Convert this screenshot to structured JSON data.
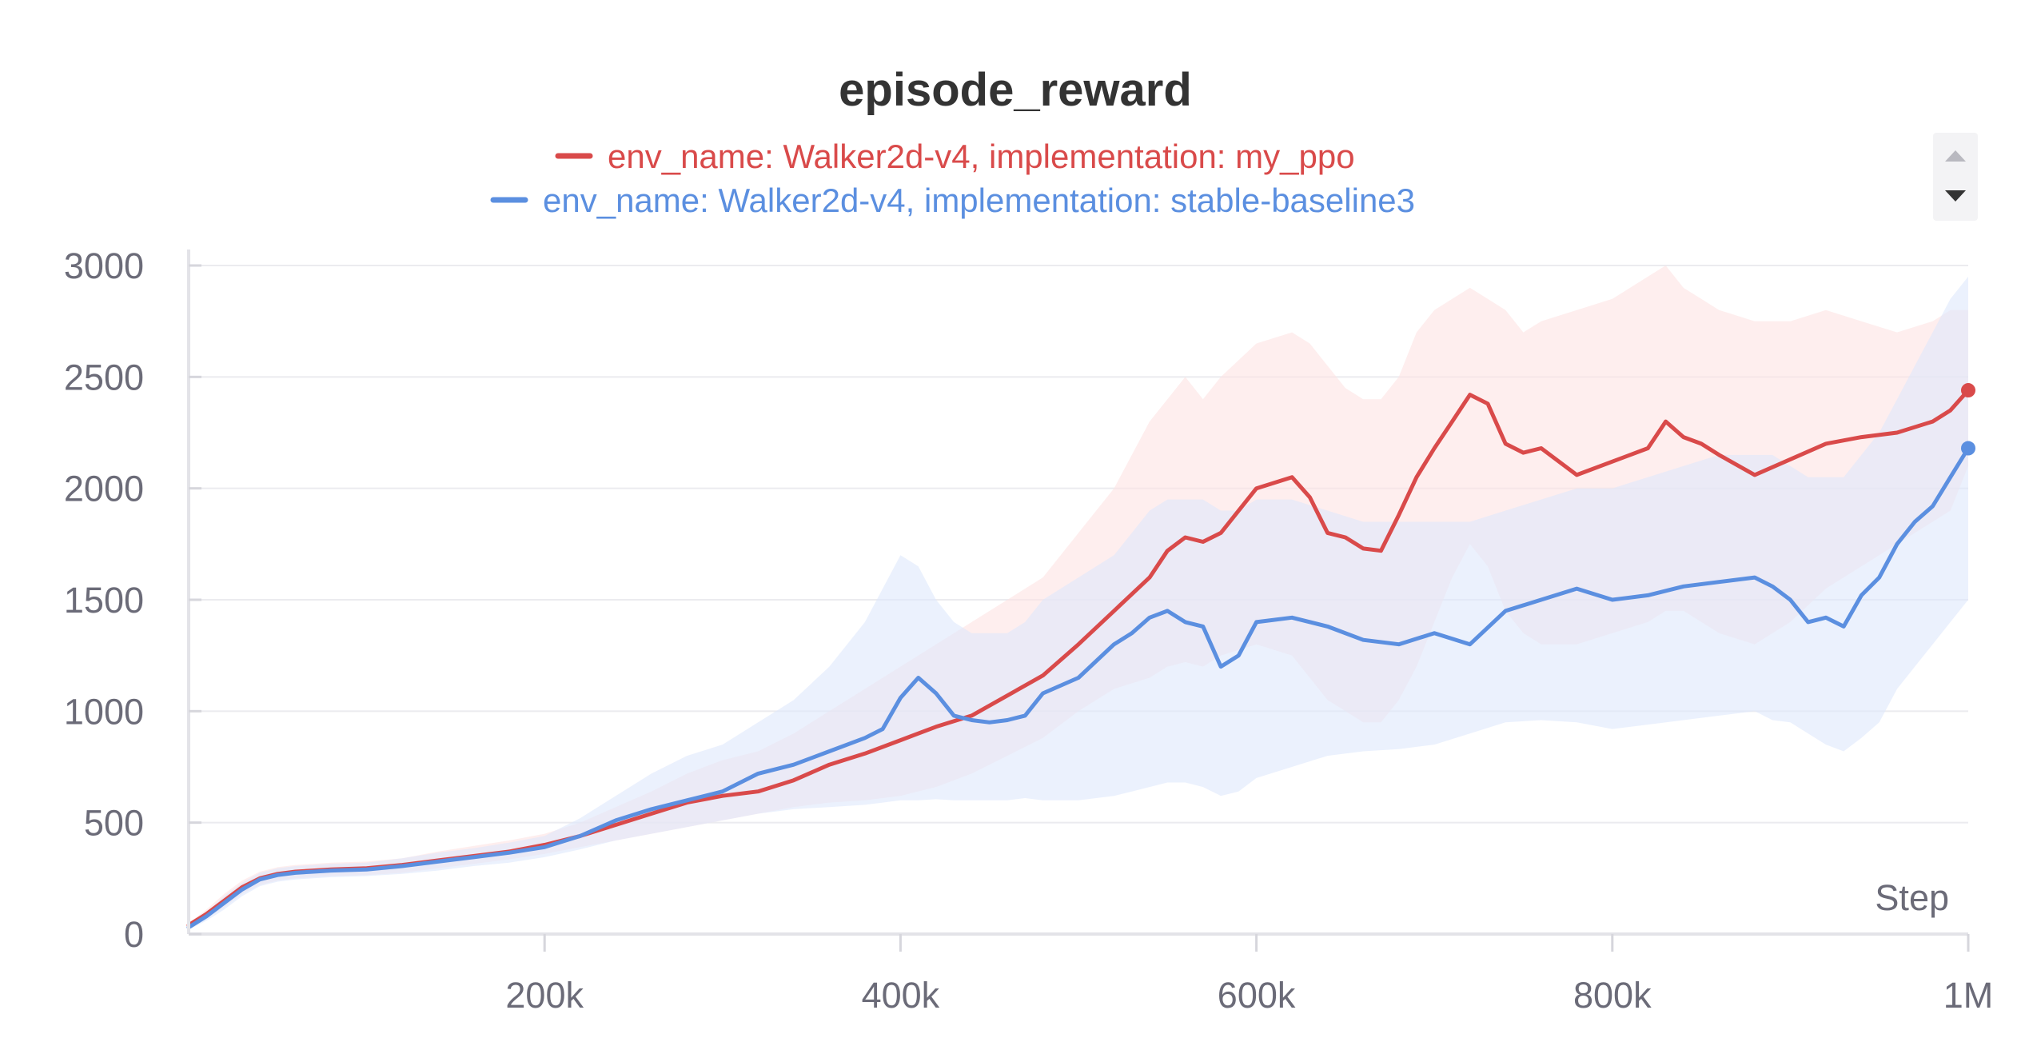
{
  "chart_data": {
    "type": "line",
    "title": "episode_reward",
    "xlabel": "Step",
    "ylabel": "",
    "xlim": [
      0,
      1000000
    ],
    "ylim": [
      0,
      3000
    ],
    "x_ticks": [
      200000,
      400000,
      600000,
      800000,
      1000000
    ],
    "x_tick_labels": [
      "200k",
      "400k",
      "600k",
      "800k",
      "1M"
    ],
    "y_ticks": [
      0,
      500,
      1000,
      1500,
      2000,
      2500,
      3000
    ],
    "y_tick_labels": [
      "0",
      "500",
      "1000",
      "1500",
      "2000",
      "2500",
      "3000"
    ],
    "grid": true,
    "legend_position": "top-center",
    "series": [
      {
        "name": "env_name: Walker2d-v4, implementation: my_ppo",
        "color": "#d94a4a",
        "band_color": "#fde3e3",
        "x": [
          0,
          10000,
          20000,
          30000,
          40000,
          50000,
          60000,
          70000,
          80000,
          100000,
          120000,
          140000,
          160000,
          180000,
          200000,
          220000,
          240000,
          260000,
          280000,
          300000,
          320000,
          340000,
          360000,
          380000,
          400000,
          420000,
          440000,
          460000,
          480000,
          500000,
          520000,
          540000,
          550000,
          560000,
          570000,
          580000,
          600000,
          620000,
          630000,
          640000,
          650000,
          660000,
          670000,
          680000,
          690000,
          700000,
          710000,
          720000,
          730000,
          740000,
          750000,
          760000,
          780000,
          800000,
          820000,
          830000,
          840000,
          850000,
          860000,
          880000,
          900000,
          920000,
          940000,
          960000,
          980000,
          990000,
          1000000
        ],
        "values": [
          40,
          90,
          150,
          210,
          250,
          270,
          280,
          285,
          290,
          295,
          310,
          330,
          350,
          370,
          400,
          440,
          490,
          540,
          590,
          620,
          640,
          690,
          760,
          810,
          870,
          930,
          980,
          1070,
          1160,
          1300,
          1450,
          1600,
          1720,
          1780,
          1760,
          1800,
          2000,
          2050,
          1960,
          1800,
          1780,
          1730,
          1720,
          1880,
          2050,
          2180,
          2300,
          2420,
          2380,
          2200,
          2160,
          2180,
          2060,
          2120,
          2180,
          2300,
          2230,
          2200,
          2150,
          2060,
          2130,
          2200,
          2230,
          2250,
          2300,
          2350,
          2440
        ],
        "band_low": [
          30,
          70,
          120,
          180,
          220,
          240,
          250,
          255,
          260,
          265,
          275,
          295,
          315,
          335,
          360,
          390,
          420,
          450,
          480,
          510,
          540,
          570,
          590,
          600,
          620,
          660,
          720,
          800,
          880,
          1000,
          1100,
          1150,
          1200,
          1220,
          1200,
          1250,
          1300,
          1250,
          1150,
          1050,
          1000,
          950,
          950,
          1050,
          1200,
          1400,
          1600,
          1750,
          1650,
          1450,
          1350,
          1300,
          1300,
          1350,
          1400,
          1450,
          1450,
          1400,
          1350,
          1300,
          1400,
          1550,
          1650,
          1750,
          1850,
          1900,
          2100
        ],
        "band_high": [
          50,
          110,
          180,
          240,
          280,
          300,
          310,
          315,
          320,
          325,
          340,
          370,
          395,
          420,
          450,
          500,
          570,
          640,
          720,
          780,
          820,
          900,
          1000,
          1100,
          1200,
          1300,
          1400,
          1500,
          1600,
          1800,
          2000,
          2300,
          2400,
          2500,
          2400,
          2500,
          2650,
          2700,
          2650,
          2550,
          2450,
          2400,
          2400,
          2500,
          2700,
          2800,
          2850,
          2900,
          2850,
          2800,
          2700,
          2750,
          2800,
          2850,
          2950,
          3000,
          2900,
          2850,
          2800,
          2750,
          2750,
          2800,
          2750,
          2700,
          2750,
          2800,
          2800
        ]
      },
      {
        "name": "env_name: Walker2d-v4, implementation: stable-baseline3",
        "color": "#5b8fe0",
        "band_color": "#dde8fb",
        "x": [
          0,
          10000,
          20000,
          30000,
          40000,
          50000,
          60000,
          70000,
          80000,
          100000,
          120000,
          140000,
          160000,
          180000,
          200000,
          220000,
          240000,
          260000,
          280000,
          300000,
          320000,
          340000,
          360000,
          380000,
          390000,
          400000,
          410000,
          420000,
          430000,
          440000,
          450000,
          460000,
          470000,
          480000,
          500000,
          520000,
          530000,
          540000,
          550000,
          560000,
          570000,
          580000,
          590000,
          600000,
          620000,
          640000,
          660000,
          680000,
          700000,
          720000,
          740000,
          760000,
          780000,
          800000,
          820000,
          840000,
          860000,
          880000,
          890000,
          900000,
          910000,
          920000,
          930000,
          940000,
          950000,
          960000,
          970000,
          980000,
          990000,
          1000000
        ],
        "values": [
          30,
          80,
          140,
          200,
          245,
          265,
          275,
          280,
          285,
          290,
          305,
          325,
          345,
          365,
          390,
          440,
          510,
          560,
          600,
          640,
          720,
          760,
          820,
          880,
          920,
          1060,
          1150,
          1080,
          980,
          960,
          950,
          960,
          980,
          1080,
          1150,
          1300,
          1350,
          1420,
          1450,
          1400,
          1380,
          1200,
          1250,
          1400,
          1420,
          1380,
          1320,
          1300,
          1350,
          1300,
          1450,
          1500,
          1550,
          1500,
          1520,
          1560,
          1580,
          1600,
          1560,
          1500,
          1400,
          1420,
          1380,
          1520,
          1600,
          1750,
          1850,
          1920,
          2050,
          2180
        ],
        "band_low": [
          20,
          60,
          110,
          170,
          215,
          235,
          245,
          250,
          255,
          260,
          270,
          285,
          305,
          320,
          345,
          380,
          420,
          450,
          480,
          510,
          540,
          560,
          570,
          580,
          590,
          600,
          600,
          605,
          600,
          600,
          600,
          600,
          610,
          600,
          600,
          620,
          640,
          660,
          680,
          680,
          660,
          620,
          640,
          700,
          750,
          800,
          820,
          830,
          850,
          900,
          950,
          960,
          950,
          920,
          940,
          960,
          980,
          1000,
          960,
          950,
          900,
          850,
          820,
          880,
          950,
          1100,
          1200,
          1300,
          1400,
          1500
        ],
        "band_high": [
          40,
          100,
          170,
          230,
          275,
          295,
          305,
          310,
          315,
          320,
          340,
          365,
          385,
          410,
          440,
          520,
          620,
          720,
          800,
          850,
          950,
          1050,
          1200,
          1400,
          1550,
          1700,
          1650,
          1500,
          1400,
          1350,
          1350,
          1350,
          1400,
          1500,
          1600,
          1700,
          1800,
          1900,
          1950,
          1950,
          1950,
          1900,
          1900,
          1950,
          1950,
          1900,
          1850,
          1850,
          1850,
          1850,
          1900,
          1950,
          2000,
          2000,
          2050,
          2100,
          2150,
          2150,
          2150,
          2100,
          2050,
          2050,
          2050,
          2150,
          2250,
          2400,
          2550,
          2700,
          2850,
          2950
        ]
      }
    ]
  },
  "legend": {
    "scroll_up_icon": "triangle-up-icon",
    "scroll_down_icon": "triangle-down-icon"
  }
}
